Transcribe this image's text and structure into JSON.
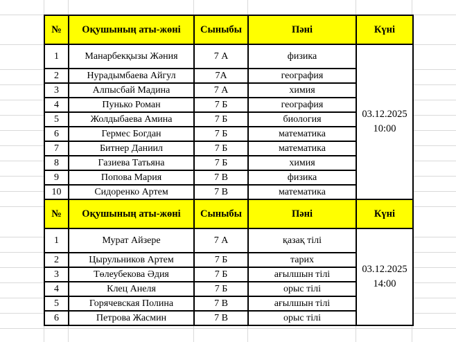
{
  "headers": {
    "num": "№",
    "name": "Оқушының аты-жөні",
    "class": "Сыныбы",
    "subject": "Пәні",
    "date": "Күні"
  },
  "groups": [
    {
      "date": "03.12.2025",
      "time": "10:00",
      "rows": [
        {
          "num": "1",
          "name": "Манарбекқызы Жәния",
          "class": "7 А",
          "subject": "физика"
        },
        {
          "num": "2",
          "name": "Нурадымбаева Айгул",
          "class": "7А",
          "subject": "география"
        },
        {
          "num": "3",
          "name": "Алпысбай Мадина",
          "class": "7 А",
          "subject": "химия"
        },
        {
          "num": "4",
          "name": "Пунько Роман",
          "class": "7 Б",
          "subject": "география"
        },
        {
          "num": "5",
          "name": "Жолдыбаева Амина",
          "class": "7 Б",
          "subject": "биология"
        },
        {
          "num": "6",
          "name": "Гермес Богдан",
          "class": "7 Б",
          "subject": "математика"
        },
        {
          "num": "7",
          "name": "Битнер Даниил",
          "class": "7 Б",
          "subject": "математика"
        },
        {
          "num": "8",
          "name": "Газиева Татьяна",
          "class": "7 Б",
          "subject": "химия"
        },
        {
          "num": "9",
          "name": "Попова Мария",
          "class": "7 В",
          "subject": "физика"
        },
        {
          "num": "10",
          "name": "Сидоренко Артем",
          "class": "7 В",
          "subject": "математика"
        }
      ]
    },
    {
      "date": "03.12.2025",
      "time": "14:00",
      "rows": [
        {
          "num": "1",
          "name": "Мурат Айзере",
          "class": "7 А",
          "subject": "қазақ тілі"
        },
        {
          "num": "2",
          "name": "Цырульников Артем",
          "class": "7 Б",
          "subject": "тарих"
        },
        {
          "num": "3",
          "name": "Төлеубекова Әдия",
          "class": "7 Б",
          "subject": "ағылшын тілі"
        },
        {
          "num": "4",
          "name": "Клец Анеля",
          "class": "7 Б",
          "subject": "орыс тілі"
        },
        {
          "num": "5",
          "name": "Горячевская Полина",
          "class": "7 В",
          "subject": "ағылшын тілі"
        },
        {
          "num": "6",
          "name": "Петрова Жасмин",
          "class": "7 В",
          "subject": "орыс тілі"
        }
      ]
    }
  ],
  "colors": {
    "header_bg": "#ffff00",
    "gridline": "#d9d9d9"
  }
}
